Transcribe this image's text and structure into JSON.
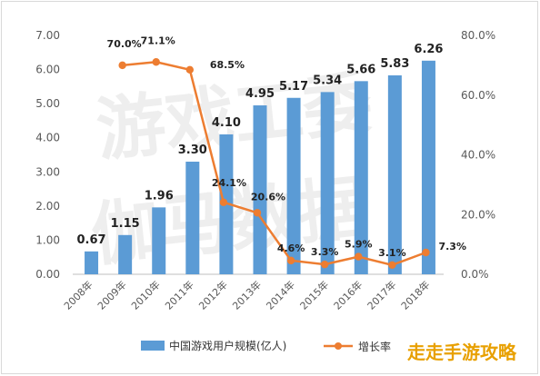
{
  "chart_data": {
    "type": "bar",
    "categories": [
      "2008年",
      "2009年",
      "2010年",
      "2011年",
      "2012年",
      "2013年",
      "2014年",
      "2015年",
      "2016年",
      "2017年",
      "2018年"
    ],
    "series": [
      {
        "name": "中国游戏用户规模(亿人)",
        "type": "bar",
        "axis": "left",
        "values": [
          0.67,
          1.15,
          1.96,
          3.3,
          4.1,
          4.95,
          5.17,
          5.34,
          5.66,
          5.83,
          6.26
        ],
        "labels": [
          "0.67",
          "1.15",
          "1.96",
          "3.30",
          "4.10",
          "4.95",
          "5.17",
          "5.34",
          "5.66",
          "5.83",
          "6.26"
        ],
        "color": "#5b9bd5"
      },
      {
        "name": "增长率",
        "type": "line",
        "axis": "right",
        "values": [
          null,
          70.0,
          71.1,
          68.5,
          24.1,
          20.6,
          4.6,
          3.3,
          5.9,
          3.1,
          7.3
        ],
        "labels": [
          null,
          "70.0%",
          "71.1%",
          "68.5%",
          "24.1%",
          "20.6%",
          "4.6%",
          "3.3%",
          "5.9%",
          "3.1%",
          "7.3%"
        ],
        "color": "#ed7d31"
      }
    ],
    "y_left": {
      "ylim": [
        0,
        7
      ],
      "ticks": [
        "0.00",
        "1.00",
        "2.00",
        "3.00",
        "4.00",
        "5.00",
        "6.00",
        "7.00"
      ]
    },
    "y_right": {
      "ylim": [
        0,
        80
      ],
      "ticks": [
        "0.0%",
        "20.0%",
        "40.0%",
        "60.0%",
        "80.0%"
      ]
    },
    "grid": false,
    "legend": "bottom"
  },
  "watermark": {
    "line1": "游戏工委",
    "line2": "伽马数据",
    "brand": "走走手游攻略"
  },
  "legend": {
    "bar_label": "中国游戏用户规模(亿人)",
    "line_label": "增长率"
  }
}
